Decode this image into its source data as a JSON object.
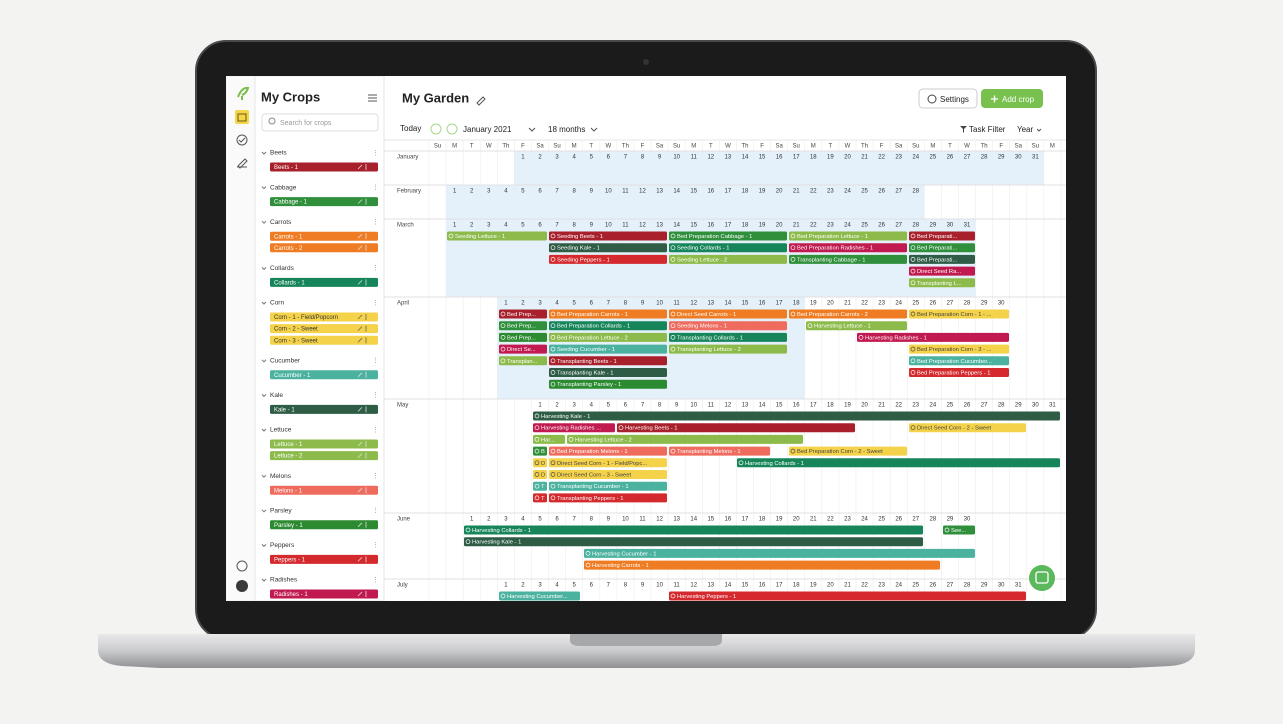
{
  "sidebar": {
    "title": "My Crops",
    "search_placeholder": "Search for crops",
    "groups": [
      {
        "name": "Beets",
        "items": [
          {
            "label": "Beets - 1",
            "color": "#a8202b"
          }
        ]
      },
      {
        "name": "Cabbage",
        "items": [
          {
            "label": "Cabbage - 1",
            "color": "#2f8f3b"
          }
        ]
      },
      {
        "name": "Carrots",
        "items": [
          {
            "label": "Carrots - 1",
            "color": "#ef7b22"
          },
          {
            "label": "Carrots - 2",
            "color": "#ef7b22"
          }
        ]
      },
      {
        "name": "Collards",
        "items": [
          {
            "label": "Collards - 1",
            "color": "#17855a"
          }
        ]
      },
      {
        "name": "Corn",
        "items": [
          {
            "label": "Corn - 1 - Field/Popcorn",
            "color": "#f4d24a"
          },
          {
            "label": "Corn - 2 - Sweet",
            "color": "#f4d24a"
          },
          {
            "label": "Corn - 3 - Sweet",
            "color": "#f4d24a"
          }
        ]
      },
      {
        "name": "Cucumber",
        "items": [
          {
            "label": "Cucumber - 1",
            "color": "#4cb2a0"
          }
        ]
      },
      {
        "name": "Kale",
        "items": [
          {
            "label": "Kale - 1",
            "color": "#2e5c45"
          }
        ]
      },
      {
        "name": "Lettuce",
        "items": [
          {
            "label": "Lettuce - 1",
            "color": "#8dbb4b"
          },
          {
            "label": "Lettuce - 2",
            "color": "#8dbb4b"
          }
        ]
      },
      {
        "name": "Melons",
        "items": [
          {
            "label": "Melons - 1",
            "color": "#ee6b5e"
          }
        ]
      },
      {
        "name": "Parsley",
        "items": [
          {
            "label": "Parsley - 1",
            "color": "#2c8a30"
          }
        ]
      },
      {
        "name": "Peppers",
        "items": [
          {
            "label": "Peppers - 1",
            "color": "#d42a2e"
          }
        ]
      },
      {
        "name": "Radishes",
        "items": [
          {
            "label": "Radishes - 1",
            "color": "#c01a50"
          }
        ]
      }
    ]
  },
  "header": {
    "title": "My Garden",
    "settings": "Settings",
    "add": "Add crop"
  },
  "toolbar": {
    "today": "Today",
    "month": "January 2021",
    "range": "18 months",
    "filter": "Task Filter",
    "view": "Year"
  },
  "calendar": {
    "weekdays": [
      "Su",
      "M",
      "T",
      "W",
      "Th",
      "F",
      "Sa"
    ],
    "months": [
      {
        "name": "January",
        "days": [
          1,
          2,
          3,
          4,
          5,
          6,
          7,
          8,
          9,
          10,
          11,
          12,
          13,
          14,
          15,
          16,
          17,
          18,
          19,
          20,
          21,
          22,
          23,
          24,
          25,
          26,
          27,
          28,
          29,
          30,
          31
        ]
      },
      {
        "name": "February",
        "days": [
          1,
          2,
          3,
          4,
          5,
          6,
          7,
          8,
          9,
          10,
          11,
          12,
          13,
          14,
          15,
          16,
          17,
          18,
          19,
          20,
          21,
          22,
          23,
          24,
          25,
          26,
          27,
          28
        ]
      },
      {
        "name": "March",
        "days": [
          1,
          2,
          3,
          4,
          5,
          6,
          7,
          8,
          9,
          10,
          11,
          12,
          13,
          14,
          15,
          16,
          17,
          18,
          19,
          20,
          21,
          22,
          23,
          24,
          25,
          26,
          27,
          28,
          29,
          30,
          31
        ]
      },
      {
        "name": "April",
        "days": [
          1,
          2,
          3,
          4,
          5,
          6,
          7,
          8,
          9,
          10,
          11,
          12,
          13,
          14,
          15,
          16,
          17,
          18,
          19,
          20,
          21,
          22,
          23,
          24,
          25,
          26,
          27,
          28,
          29,
          30
        ]
      },
      {
        "name": "May",
        "days": [
          1,
          2,
          3,
          4,
          5,
          6,
          7,
          8,
          9,
          10,
          11,
          12,
          13,
          14,
          15,
          16,
          17,
          18,
          19,
          20,
          21,
          22,
          23,
          24,
          25,
          26,
          27,
          28,
          29,
          30,
          31
        ]
      },
      {
        "name": "June",
        "days": [
          1,
          2,
          3,
          4,
          5,
          6,
          7,
          8,
          9,
          10,
          11,
          12,
          13,
          14,
          15,
          16,
          17,
          18,
          19,
          20,
          21,
          22,
          23,
          24,
          25,
          26,
          27,
          28,
          29,
          30
        ]
      },
      {
        "name": "July",
        "days": [
          1,
          2,
          3,
          4,
          5,
          6,
          7,
          8,
          9,
          10,
          11,
          12,
          13,
          14,
          15,
          16,
          17,
          18,
          19,
          20,
          21,
          22,
          23,
          24,
          25,
          26,
          27,
          28,
          29,
          30,
          31
        ]
      }
    ],
    "tasks": [
      {
        "label": "Seeding Lettuce - 1",
        "color": "#8dbb4b"
      },
      {
        "label": "Seeding Beets - 1",
        "color": "#a8202b"
      },
      {
        "label": "Seeding Kale - 1",
        "color": "#2e5c45"
      },
      {
        "label": "Seeding Peppers - 1",
        "color": "#d42a2e"
      },
      {
        "label": "Bed Preparation Cabbage - 1",
        "color": "#2f8f3b"
      },
      {
        "label": "Seeding Collards - 1",
        "color": "#17855a"
      },
      {
        "label": "Seeding Lettuce - 2",
        "color": "#8dbb4b"
      },
      {
        "label": "Bed Preparation Lettuce - 1",
        "color": "#8dbb4b"
      },
      {
        "label": "Bed Preparation Radishes - 1",
        "color": "#c01a50"
      },
      {
        "label": "Transplanting Cabbage - 1",
        "color": "#2f8f3b"
      },
      {
        "label": "Bed Preparati...",
        "color": "#a8202b"
      },
      {
        "label": "Bed Preparati...",
        "color": "#2f8f3b"
      },
      {
        "label": "Bed Preparati...",
        "color": "#2e5c45"
      },
      {
        "label": "Direct Seed Ra...",
        "color": "#c01a50"
      },
      {
        "label": "Transplanting L...",
        "color": "#8dbb4b"
      },
      {
        "label": "Bed Prep...",
        "color": "#a8202b"
      },
      {
        "label": "Bed Prep...",
        "color": "#2f8f3b"
      },
      {
        "label": "Bed Prep...",
        "color": "#2c8a30"
      },
      {
        "label": "Direct Se...",
        "color": "#c01a50"
      },
      {
        "label": "Transplan...",
        "color": "#8dbb4b"
      },
      {
        "label": "Bed Preparation Carrots - 1",
        "color": "#ef7b22"
      },
      {
        "label": "Bed Preparation Collards - 1",
        "color": "#17855a"
      },
      {
        "label": "Bed Preparation Lettuce - 2",
        "color": "#8dbb4b"
      },
      {
        "label": "Seeding Cucumber - 1",
        "color": "#4cb2a0"
      },
      {
        "label": "Transplanting Beets - 1",
        "color": "#a8202b"
      },
      {
        "label": "Transplanting Kale - 1",
        "color": "#2e5c45"
      },
      {
        "label": "Transplanting Parsley - 1",
        "color": "#2c8a30"
      },
      {
        "label": "Direct Seed Carrots - 1",
        "color": "#ef7b22"
      },
      {
        "label": "Seeding Melons - 1",
        "color": "#ee6b5e"
      },
      {
        "label": "Transplanting Collards - 1",
        "color": "#17855a"
      },
      {
        "label": "Transplanting Lettuce - 2",
        "color": "#8dbb4b"
      },
      {
        "label": "Bed Preparation Carrots - 2",
        "color": "#ef7b22"
      },
      {
        "label": "Harvesting Lettuce - 1",
        "color": "#8dbb4b"
      },
      {
        "label": "Harvesting Radishes - 1",
        "color": "#c01a50"
      },
      {
        "label": "Bed Preparation Corn - 1 - ...",
        "color": "#f4d24a"
      },
      {
        "label": "Bed Preparation Corn - 3 - ...",
        "color": "#f4d24a"
      },
      {
        "label": "Bed Preparation Cucumber...",
        "color": "#4cb2a0"
      },
      {
        "label": "Bed Preparation Peppers - 1",
        "color": "#d42a2e"
      },
      {
        "label": "Harvesting Kale - 1",
        "color": "#2e5c45"
      },
      {
        "label": "Harvesting Radishes ...",
        "color": "#c01a50"
      },
      {
        "label": "Harvesting Beets - 1",
        "color": "#a8202b"
      },
      {
        "label": "Direct Seed Corn - 2 - Sweet",
        "color": "#f4d24a"
      },
      {
        "label": "Har...",
        "color": "#8dbb4b"
      },
      {
        "label": "Harvesting Lettuce - 2",
        "color": "#8dbb4b"
      },
      {
        "label": "B",
        "color": "#2f8f3b"
      },
      {
        "label": "Bed Preparation Melons - 1",
        "color": "#ee6b5e"
      },
      {
        "label": "Transplanting Melons - 1",
        "color": "#ee6b5e"
      },
      {
        "label": "Bed Preparation Corn - 2 - Sweet",
        "color": "#f4d24a"
      },
      {
        "label": "D",
        "color": "#f4d24a"
      },
      {
        "label": "Direct Seed Corn - 1 - Field/Popc...",
        "color": "#f4d24a"
      },
      {
        "label": "Harvesting Collards - 1",
        "color": "#17855a"
      },
      {
        "label": "D",
        "color": "#f4d24a"
      },
      {
        "label": "Direct Seed Corn - 3 - Sweet",
        "color": "#f4d24a"
      },
      {
        "label": "T",
        "color": "#4cb2a0"
      },
      {
        "label": "Transplanting Cucumber - 1",
        "color": "#4cb2a0"
      },
      {
        "label": "T",
        "color": "#d42a2e"
      },
      {
        "label": "Transplanting Peppers - 1",
        "color": "#d42a2e"
      },
      {
        "label": "Harvesting Collards - 1",
        "color": "#17855a"
      },
      {
        "label": "See...",
        "color": "#2f8f3b"
      },
      {
        "label": "Harvesting Kale - 1",
        "color": "#2e5c45"
      },
      {
        "label": "Harvesting Cucumber - 1",
        "color": "#4cb2a0"
      },
      {
        "label": "Harvesting Carrots - 1",
        "color": "#ef7b22"
      },
      {
        "label": "Harvesting Cucumber...",
        "color": "#4cb2a0"
      },
      {
        "label": "Harvesting Peppers - 1",
        "color": "#d42a2e"
      }
    ]
  }
}
